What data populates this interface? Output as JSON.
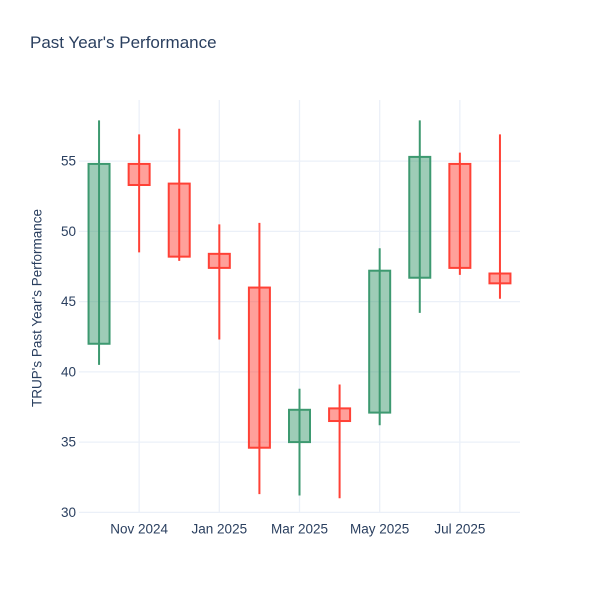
{
  "chart_data": {
    "type": "candlestick",
    "title": "Past Year's Performance",
    "ylabel": "TRUP's Past Year's Performance",
    "xlabel": "",
    "categories": [
      "Oct 2024",
      "Nov 2024",
      "Dec 2024",
      "Jan 2025",
      "Feb 2025",
      "Mar 2025",
      "Apr 2025",
      "May 2025",
      "Jun 2025",
      "Jul 2025",
      "Aug 2025"
    ],
    "ohlc": [
      {
        "month": "Oct 2024",
        "open": 42.0,
        "high": 57.9,
        "low": 40.5,
        "close": 54.8
      },
      {
        "month": "Nov 2024",
        "open": 54.8,
        "high": 56.9,
        "low": 48.5,
        "close": 53.3
      },
      {
        "month": "Dec 2024",
        "open": 53.4,
        "high": 57.3,
        "low": 47.9,
        "close": 48.2
      },
      {
        "month": "Jan 2025",
        "open": 48.4,
        "high": 50.5,
        "low": 42.3,
        "close": 47.4
      },
      {
        "month": "Feb 2025",
        "open": 46.0,
        "high": 50.6,
        "low": 31.3,
        "close": 34.6
      },
      {
        "month": "Mar 2025",
        "open": 35.0,
        "high": 38.8,
        "low": 31.2,
        "close": 37.3
      },
      {
        "month": "Apr 2025",
        "open": 37.4,
        "high": 39.1,
        "low": 31.0,
        "close": 36.5
      },
      {
        "month": "May 2025",
        "open": 37.1,
        "high": 48.8,
        "low": 36.2,
        "close": 47.2
      },
      {
        "month": "Jun 2025",
        "open": 46.7,
        "high": 57.9,
        "low": 44.2,
        "close": 55.3
      },
      {
        "month": "Jul 2025",
        "open": 54.8,
        "high": 55.6,
        "low": 46.9,
        "close": 47.4
      },
      {
        "month": "Aug 2025",
        "open": 47.0,
        "high": 56.9,
        "low": 45.2,
        "close": 46.3
      }
    ],
    "y_ticks": [
      30,
      35,
      40,
      45,
      50,
      55
    ],
    "x_ticks": [
      {
        "label": "Nov 2024",
        "index": 1
      },
      {
        "label": "Jan 2025",
        "index": 3
      },
      {
        "label": "Mar 2025",
        "index": 5
      },
      {
        "label": "May 2025",
        "index": 7
      },
      {
        "label": "Jul 2025",
        "index": 9
      }
    ],
    "ylim": [
      29.74,
      59.35
    ],
    "grid": true,
    "legend": false,
    "colors": {
      "increasing_line": "#3d9970",
      "increasing_fill_rgba": "rgba(61,153,112,0.5)",
      "decreasing_line": "#ff4136",
      "decreasing_fill_rgba": "rgba(255,65,54,0.5)",
      "grid": "#ebf0f8",
      "text": "#2a3f5f",
      "background": "#ffffff"
    }
  }
}
